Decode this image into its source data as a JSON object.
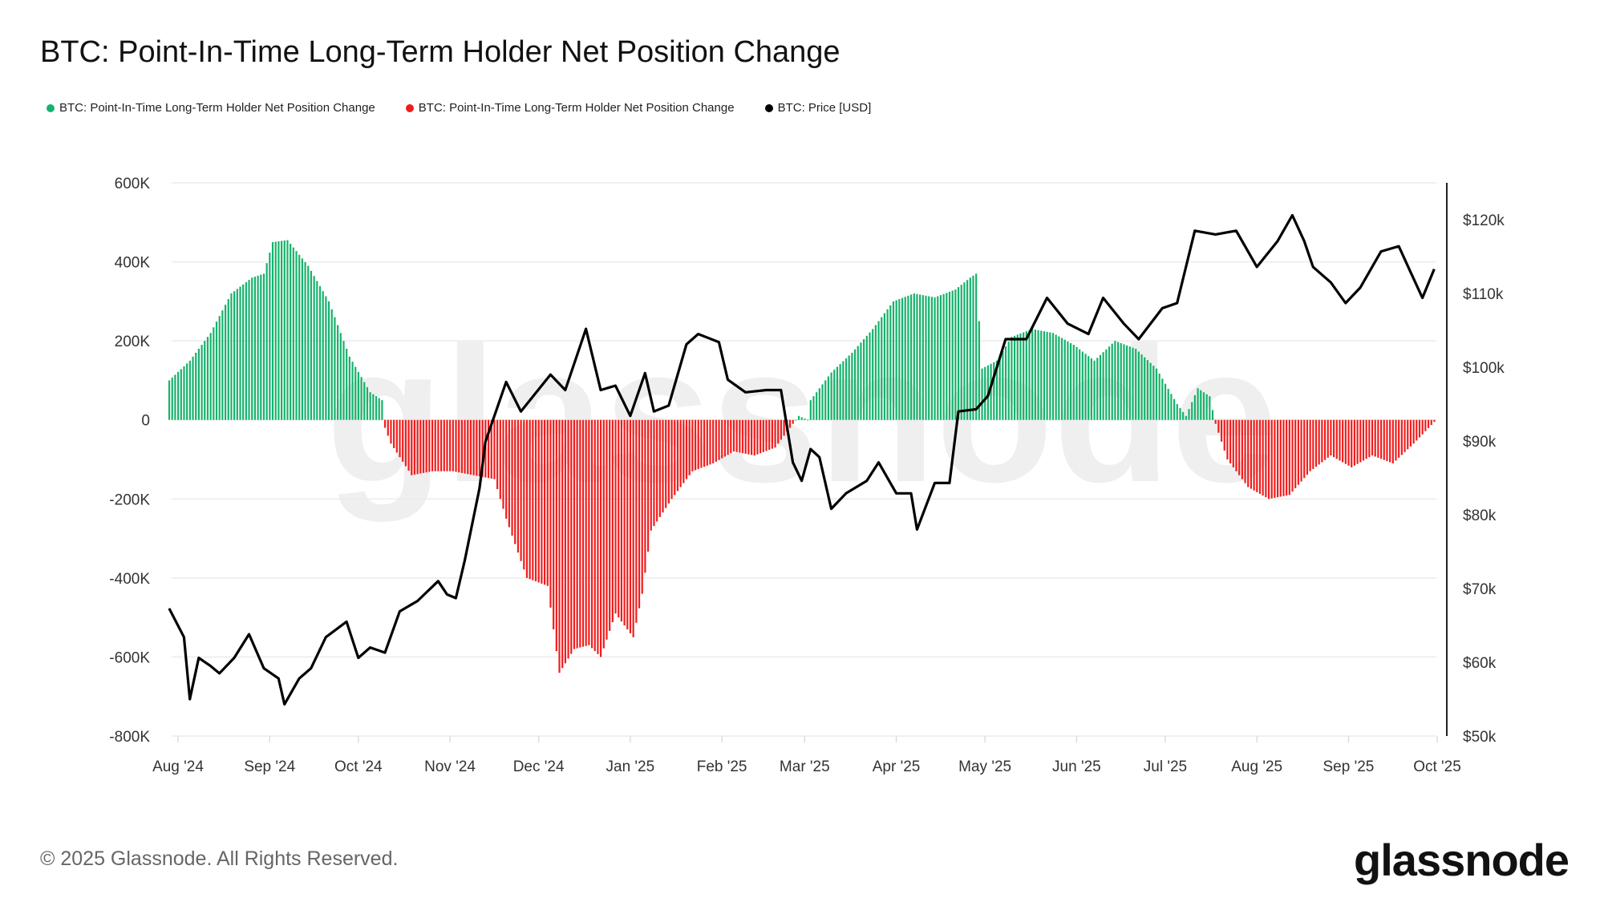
{
  "chart_data": {
    "type": "bar+line",
    "title": "BTC: Point-In-Time Long-Term Holder Net Position Change",
    "legend": [
      {
        "label": "BTC: Point-In-Time Long-Term Holder Net Position Change",
        "color": "#16b26b"
      },
      {
        "label": "BTC: Point-In-Time Long-Term Holder Net Position Change",
        "color": "#f01d1d"
      },
      {
        "label": "BTC: Price [USD]",
        "color": "#000000"
      }
    ],
    "legend_placement": "top-left",
    "grid": true,
    "left_axis": {
      "ylim": [
        -800000,
        600000
      ],
      "ticks": [
        "600K",
        "400K",
        "200K",
        "0",
        "-200K",
        "-400K",
        "-600K",
        "-800K"
      ],
      "tick_values": [
        600000,
        400000,
        200000,
        0,
        -200000,
        -400000,
        -600000,
        -800000
      ]
    },
    "right_axis": {
      "ylim": [
        50000,
        125000
      ],
      "scale": "linear",
      "ticks": [
        "$120k",
        "$110k",
        "$100k",
        "$90k",
        "$80k",
        "$70k",
        "$60k",
        "$50k"
      ],
      "tick_values": [
        120000,
        110000,
        100000,
        90000,
        80000,
        70000,
        60000,
        50000
      ]
    },
    "x_axis": {
      "range": [
        "2024-07-29",
        "2025-10-01"
      ],
      "ticks": [
        "Aug '24",
        "Sep '24",
        "Oct '24",
        "Nov '24",
        "Dec '24",
        "Jan '25",
        "Feb '25",
        "Mar '25",
        "Apr '25",
        "May '25",
        "Jun '25",
        "Jul '25",
        "Aug '25",
        "Sep '25",
        "Oct '25"
      ],
      "tick_dates": [
        "2024-08-01",
        "2024-09-01",
        "2024-10-01",
        "2024-11-01",
        "2024-12-01",
        "2025-01-01",
        "2025-02-01",
        "2025-03-01",
        "2025-04-01",
        "2025-05-01",
        "2025-06-01",
        "2025-07-01",
        "2025-08-01",
        "2025-09-01",
        "2025-10-01"
      ]
    },
    "net_position_change": [
      [
        "2024-07-29",
        100000
      ],
      [
        "2024-08-05",
        150000
      ],
      [
        "2024-08-12",
        220000
      ],
      [
        "2024-08-19",
        320000
      ],
      [
        "2024-08-26",
        360000
      ],
      [
        "2024-08-30",
        370000
      ],
      [
        "2024-09-02",
        450000
      ],
      [
        "2024-09-07",
        455000
      ],
      [
        "2024-09-14",
        390000
      ],
      [
        "2024-09-21",
        300000
      ],
      [
        "2024-09-28",
        160000
      ],
      [
        "2024-10-05",
        70000
      ],
      [
        "2024-10-09",
        50000
      ],
      [
        "2024-10-10",
        -20000
      ],
      [
        "2024-10-12",
        -60000
      ],
      [
        "2024-10-19",
        -140000
      ],
      [
        "2024-10-26",
        -130000
      ],
      [
        "2024-11-02",
        -130000
      ],
      [
        "2024-11-09",
        -140000
      ],
      [
        "2024-11-16",
        -150000
      ],
      [
        "2024-11-20",
        -250000
      ],
      [
        "2024-11-27",
        -400000
      ],
      [
        "2024-12-04",
        -420000
      ],
      [
        "2024-12-08",
        -640000
      ],
      [
        "2024-12-13",
        -580000
      ],
      [
        "2024-12-18",
        -570000
      ],
      [
        "2024-12-22",
        -600000
      ],
      [
        "2024-12-27",
        -490000
      ],
      [
        "2025-01-02",
        -550000
      ],
      [
        "2025-01-05",
        -440000
      ],
      [
        "2025-01-08",
        -280000
      ],
      [
        "2025-01-15",
        -200000
      ],
      [
        "2025-01-22",
        -130000
      ],
      [
        "2025-01-29",
        -110000
      ],
      [
        "2025-02-05",
        -80000
      ],
      [
        "2025-02-12",
        -90000
      ],
      [
        "2025-02-19",
        -70000
      ],
      [
        "2025-02-25",
        -10000
      ],
      [
        "2025-02-27",
        10000
      ],
      [
        "2025-03-02",
        0
      ],
      [
        "2025-03-03",
        50000
      ],
      [
        "2025-03-10",
        120000
      ],
      [
        "2025-03-17",
        170000
      ],
      [
        "2025-03-24",
        230000
      ],
      [
        "2025-03-31",
        300000
      ],
      [
        "2025-04-07",
        320000
      ],
      [
        "2025-04-14",
        310000
      ],
      [
        "2025-04-21",
        330000
      ],
      [
        "2025-04-26",
        360000
      ],
      [
        "2025-04-28",
        370000
      ],
      [
        "2025-04-30",
        130000
      ],
      [
        "2025-05-05",
        150000
      ],
      [
        "2025-05-10",
        210000
      ],
      [
        "2025-05-17",
        230000
      ],
      [
        "2025-05-24",
        220000
      ],
      [
        "2025-05-31",
        190000
      ],
      [
        "2025-06-07",
        150000
      ],
      [
        "2025-06-14",
        200000
      ],
      [
        "2025-06-21",
        180000
      ],
      [
        "2025-06-28",
        130000
      ],
      [
        "2025-07-05",
        40000
      ],
      [
        "2025-07-08",
        10000
      ],
      [
        "2025-07-12",
        80000
      ],
      [
        "2025-07-16",
        60000
      ],
      [
        "2025-07-18",
        -10000
      ],
      [
        "2025-07-22",
        -100000
      ],
      [
        "2025-07-29",
        -170000
      ],
      [
        "2025-08-05",
        -200000
      ],
      [
        "2025-08-12",
        -190000
      ],
      [
        "2025-08-19",
        -130000
      ],
      [
        "2025-08-26",
        -90000
      ],
      [
        "2025-09-02",
        -120000
      ],
      [
        "2025-09-09",
        -90000
      ],
      [
        "2025-09-16",
        -110000
      ],
      [
        "2025-09-23",
        -60000
      ],
      [
        "2025-09-30",
        -5000
      ]
    ],
    "price_usd": [
      [
        "2024-07-29",
        67300
      ],
      [
        "2024-08-03",
        63400
      ],
      [
        "2024-08-05",
        55000
      ],
      [
        "2024-08-08",
        60600
      ],
      [
        "2024-08-12",
        59500
      ],
      [
        "2024-08-15",
        58500
      ],
      [
        "2024-08-20",
        60600
      ],
      [
        "2024-08-25",
        63800
      ],
      [
        "2024-08-30",
        59200
      ],
      [
        "2024-09-04",
        57800
      ],
      [
        "2024-09-06",
        54300
      ],
      [
        "2024-09-11",
        57800
      ],
      [
        "2024-09-15",
        59200
      ],
      [
        "2024-09-20",
        63400
      ],
      [
        "2024-09-27",
        65500
      ],
      [
        "2024-10-01",
        60600
      ],
      [
        "2024-10-05",
        62000
      ],
      [
        "2024-10-10",
        61300
      ],
      [
        "2024-10-15",
        66900
      ],
      [
        "2024-10-21",
        68300
      ],
      [
        "2024-10-28",
        71000
      ],
      [
        "2024-10-31",
        69200
      ],
      [
        "2024-11-03",
        68700
      ],
      [
        "2024-11-06",
        73800
      ],
      [
        "2024-11-11",
        83600
      ],
      [
        "2024-11-13",
        89900
      ],
      [
        "2024-11-20",
        98000
      ],
      [
        "2024-11-25",
        94000
      ],
      [
        "2024-12-05",
        99000
      ],
      [
        "2024-12-10",
        96900
      ],
      [
        "2024-12-17",
        105200
      ],
      [
        "2024-12-22",
        96900
      ],
      [
        "2024-12-27",
        97500
      ],
      [
        "2025-01-01",
        93400
      ],
      [
        "2025-01-06",
        99200
      ],
      [
        "2025-01-09",
        94000
      ],
      [
        "2025-01-14",
        94800
      ],
      [
        "2025-01-20",
        103100
      ],
      [
        "2025-01-24",
        104500
      ],
      [
        "2025-01-31",
        103400
      ],
      [
        "2025-02-03",
        98300
      ],
      [
        "2025-02-09",
        96600
      ],
      [
        "2025-02-16",
        96900
      ],
      [
        "2025-02-21",
        96900
      ],
      [
        "2025-02-25",
        87100
      ],
      [
        "2025-02-28",
        84600
      ],
      [
        "2025-03-03",
        88900
      ],
      [
        "2025-03-06",
        87800
      ],
      [
        "2025-03-10",
        80800
      ],
      [
        "2025-03-15",
        82900
      ],
      [
        "2025-03-22",
        84600
      ],
      [
        "2025-03-26",
        87100
      ],
      [
        "2025-04-01",
        82900
      ],
      [
        "2025-04-06",
        82900
      ],
      [
        "2025-04-08",
        78000
      ],
      [
        "2025-04-14",
        84300
      ],
      [
        "2025-04-19",
        84300
      ],
      [
        "2025-04-22",
        94000
      ],
      [
        "2025-04-28",
        94300
      ],
      [
        "2025-05-02",
        96100
      ],
      [
        "2025-05-08",
        103800
      ],
      [
        "2025-05-15",
        103800
      ],
      [
        "2025-05-22",
        109400
      ],
      [
        "2025-05-29",
        105900
      ],
      [
        "2025-06-05",
        104500
      ],
      [
        "2025-06-10",
        109400
      ],
      [
        "2025-06-17",
        105900
      ],
      [
        "2025-06-22",
        103800
      ],
      [
        "2025-06-30",
        108000
      ],
      [
        "2025-07-05",
        108700
      ],
      [
        "2025-07-11",
        118500
      ],
      [
        "2025-07-18",
        118000
      ],
      [
        "2025-07-25",
        118500
      ],
      [
        "2025-08-01",
        113600
      ],
      [
        "2025-08-08",
        117100
      ],
      [
        "2025-08-13",
        120600
      ],
      [
        "2025-08-17",
        117100
      ],
      [
        "2025-08-20",
        113600
      ],
      [
        "2025-08-26",
        111500
      ],
      [
        "2025-08-31",
        108700
      ],
      [
        "2025-09-05",
        110800
      ],
      [
        "2025-09-12",
        115700
      ],
      [
        "2025-09-18",
        116400
      ],
      [
        "2025-09-22",
        112900
      ],
      [
        "2025-09-26",
        109400
      ],
      [
        "2025-09-30",
        113300
      ]
    ],
    "colors": {
      "positive": "#16b26b",
      "negative": "#f01d1d",
      "price": "#000000",
      "grid": "#ececec"
    }
  },
  "footer": {
    "copyright": "© 2025 Glassnode. All Rights Reserved.",
    "logo": "glassnode"
  },
  "watermark": "glassnode"
}
